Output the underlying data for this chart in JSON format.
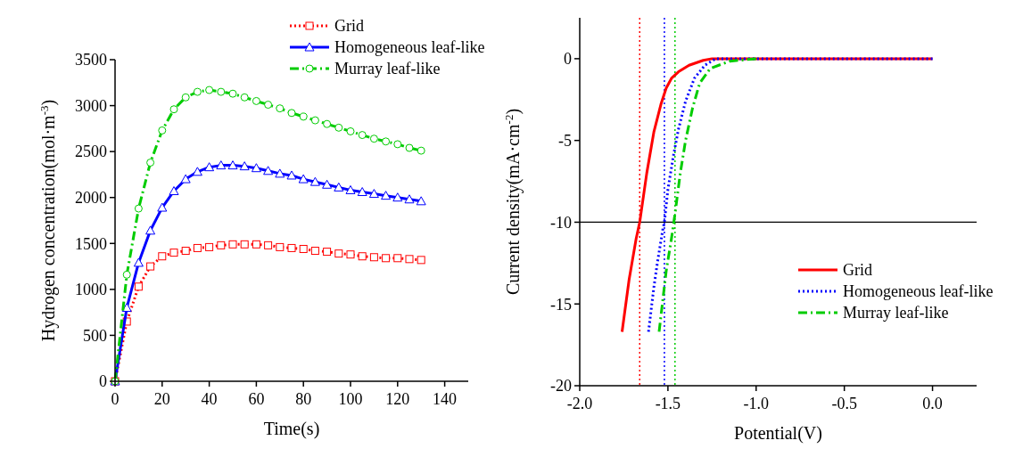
{
  "chart_data": [
    {
      "type": "line",
      "xlabel": "Time(s)",
      "ylabel": "Hydrogen concentration(mol·m$^{-3}$)",
      "xlim": [
        0,
        150
      ],
      "ylim": [
        0,
        3500
      ],
      "xticks": [
        0,
        20,
        40,
        60,
        80,
        100,
        120,
        140
      ],
      "yticks": [
        0,
        500,
        1000,
        1500,
        2000,
        2500,
        3000,
        3500
      ],
      "legend": "top right",
      "grid": false,
      "x": [
        0,
        5,
        10,
        15,
        20,
        25,
        30,
        35,
        40,
        45,
        50,
        55,
        60,
        65,
        70,
        75,
        80,
        85,
        90,
        95,
        100,
        105,
        110,
        115,
        120,
        125,
        130
      ],
      "series": [
        {
          "name": "Grid",
          "color": "#ff0000",
          "marker": "square",
          "line_style": "dotted",
          "values": [
            0,
            650,
            1030,
            1250,
            1360,
            1400,
            1420,
            1450,
            1460,
            1480,
            1490,
            1490,
            1490,
            1480,
            1460,
            1450,
            1440,
            1420,
            1410,
            1390,
            1380,
            1360,
            1350,
            1340,
            1340,
            1330,
            1320
          ]
        },
        {
          "name": "Homogeneous leaf-like",
          "color": "#0000ff",
          "marker": "triangle",
          "line_style": "solid",
          "values": [
            0,
            800,
            1290,
            1640,
            1890,
            2070,
            2200,
            2280,
            2330,
            2350,
            2350,
            2340,
            2320,
            2290,
            2260,
            2240,
            2200,
            2170,
            2140,
            2110,
            2080,
            2060,
            2040,
            2020,
            2000,
            1980,
            1960
          ]
        },
        {
          "name": "Murray leaf-like",
          "color": "#00cc00",
          "marker": "circle",
          "line_style": "dashed",
          "values": [
            0,
            1160,
            1880,
            2380,
            2730,
            2960,
            3090,
            3150,
            3170,
            3150,
            3130,
            3090,
            3050,
            3010,
            2970,
            2920,
            2880,
            2840,
            2800,
            2760,
            2720,
            2680,
            2640,
            2610,
            2580,
            2540,
            2510
          ]
        }
      ]
    },
    {
      "type": "line",
      "xlabel": "Potential(V)",
      "ylabel": "Current density(mA·cm$^{-2}$)",
      "xlim": [
        -2,
        0.25
      ],
      "ylim": [
        -20,
        2.5
      ],
      "xticks": [
        {
          "value": -2,
          "label": "-2.0"
        },
        -1.5,
        {
          "value": -1,
          "label": "-1.0"
        },
        -0.5,
        {
          "value": 0,
          "label": "0.0"
        }
      ],
      "yticks": [
        -20,
        -15,
        -10,
        -5,
        0
      ],
      "legend": "bottom right",
      "grid": false,
      "ref_lines": [
        {
          "axis": "x",
          "value": -1.66,
          "color": "#ff0000",
          "line_style": "dotted"
        },
        {
          "axis": "x",
          "value": -1.52,
          "color": "#0000ff",
          "line_style": "dotted"
        },
        {
          "axis": "x",
          "value": -1.46,
          "color": "#00cc00",
          "line_style": "dotted"
        },
        {
          "axis": "y",
          "value": -10,
          "color": "#000000",
          "line_style": "solid"
        }
      ],
      "series": [
        {
          "name": "Grid",
          "color": "#ff0000",
          "line_style": "solid",
          "x": [
            -1.76,
            -1.72,
            -1.68,
            -1.66,
            -1.62,
            -1.58,
            -1.54,
            -1.51,
            -1.48,
            -1.44,
            -1.38,
            -1.3,
            -1.25,
            0
          ],
          "values": [
            -16.7,
            -13.5,
            -11,
            -10,
            -7,
            -4.5,
            -2.8,
            -1.8,
            -1.2,
            -0.8,
            -0.4,
            -0.1,
            0,
            0
          ]
        },
        {
          "name": "Homogeneous leaf-like",
          "color": "#0000ff",
          "line_style": "dotted",
          "x": [
            -1.61,
            -1.58,
            -1.56,
            -1.53,
            -1.52,
            -1.5,
            -1.47,
            -1.44,
            -1.4,
            -1.35,
            -1.29,
            -1.23,
            0
          ],
          "values": [
            -16.7,
            -14,
            -12.5,
            -10.5,
            -10,
            -8,
            -6,
            -4.3,
            -2.6,
            -1.2,
            -0.4,
            0,
            0
          ]
        },
        {
          "name": "Murray leaf-like",
          "color": "#00cc00",
          "line_style": "dashed",
          "x": [
            -1.55,
            -1.51,
            -1.48,
            -1.46,
            -1.43,
            -1.4,
            -1.36,
            -1.32,
            -1.26,
            -1.15,
            -1
          ],
          "values": [
            -16.7,
            -13,
            -11,
            -9.5,
            -7,
            -5,
            -3,
            -1.5,
            -0.6,
            -0.15,
            0
          ]
        }
      ]
    }
  ]
}
